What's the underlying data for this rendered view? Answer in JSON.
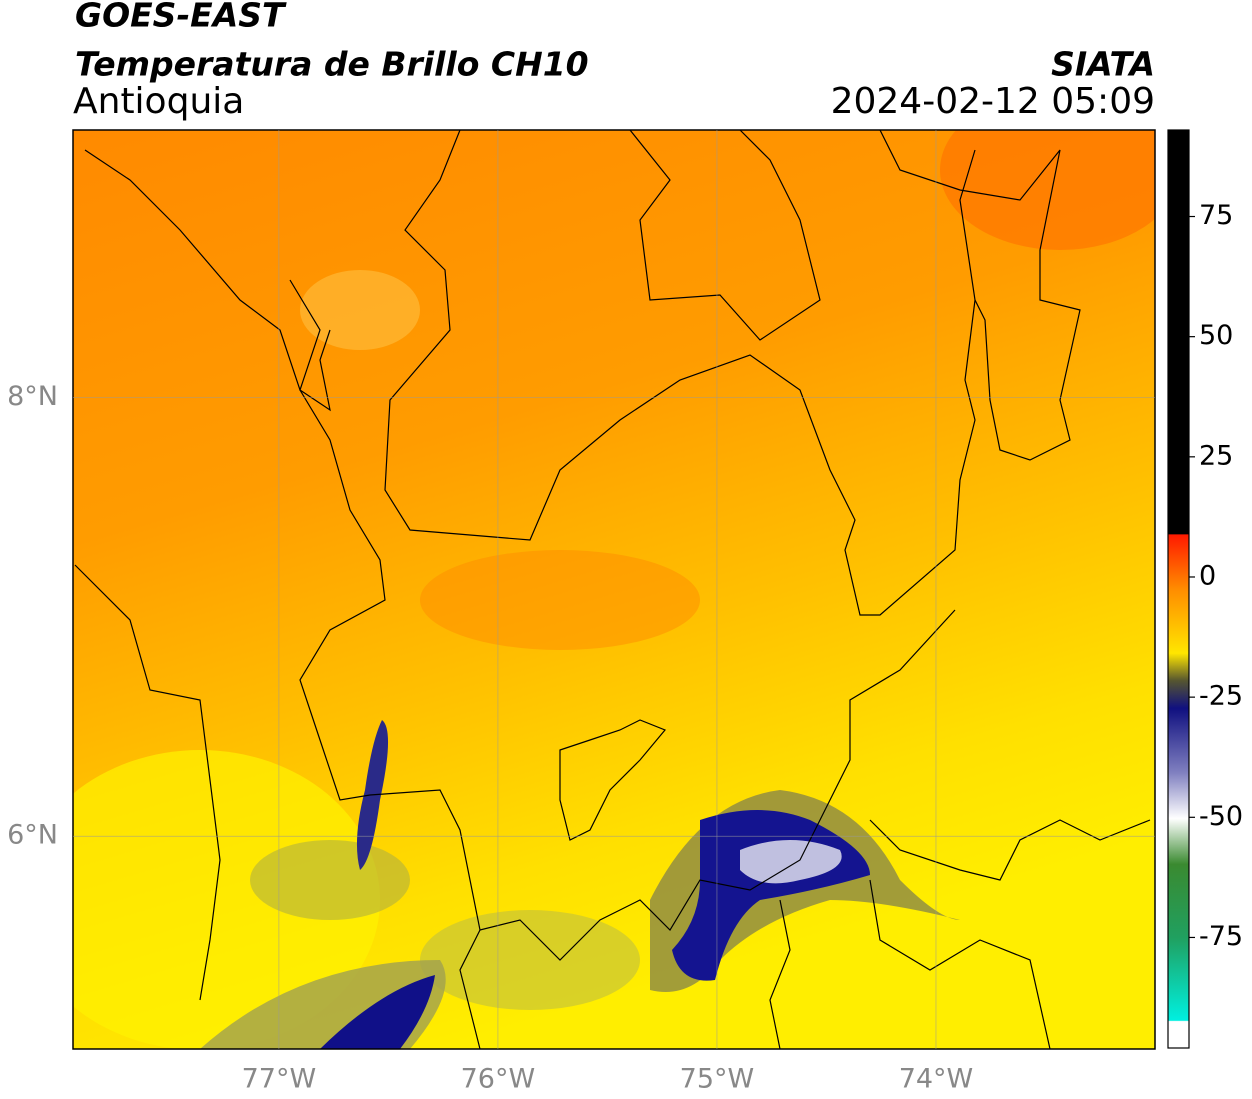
{
  "header": {
    "satellite": "GOES-EAST",
    "product": "Temperatura de Brillo CH10",
    "region": "Antioquia",
    "agency": "SIATA",
    "datetime": "2024-02-12 05:09"
  },
  "map": {
    "xlim": [
      -77.94,
      -73.0
    ],
    "ylim": [
      5.03,
      9.22
    ],
    "xticks": [
      {
        "value": -77,
        "label": "77°W"
      },
      {
        "value": -76,
        "label": "76°W"
      },
      {
        "value": -75,
        "label": "75°W"
      },
      {
        "value": -74,
        "label": "74°W"
      }
    ],
    "yticks": [
      {
        "value": 8,
        "label": "8°N"
      },
      {
        "value": 6,
        "label": "6°N"
      }
    ],
    "grid": true
  },
  "colorbar": {
    "lim": [
      -98,
      93
    ],
    "ticks": [
      75,
      50,
      25,
      0,
      -25,
      -50,
      -75
    ]
  }
}
